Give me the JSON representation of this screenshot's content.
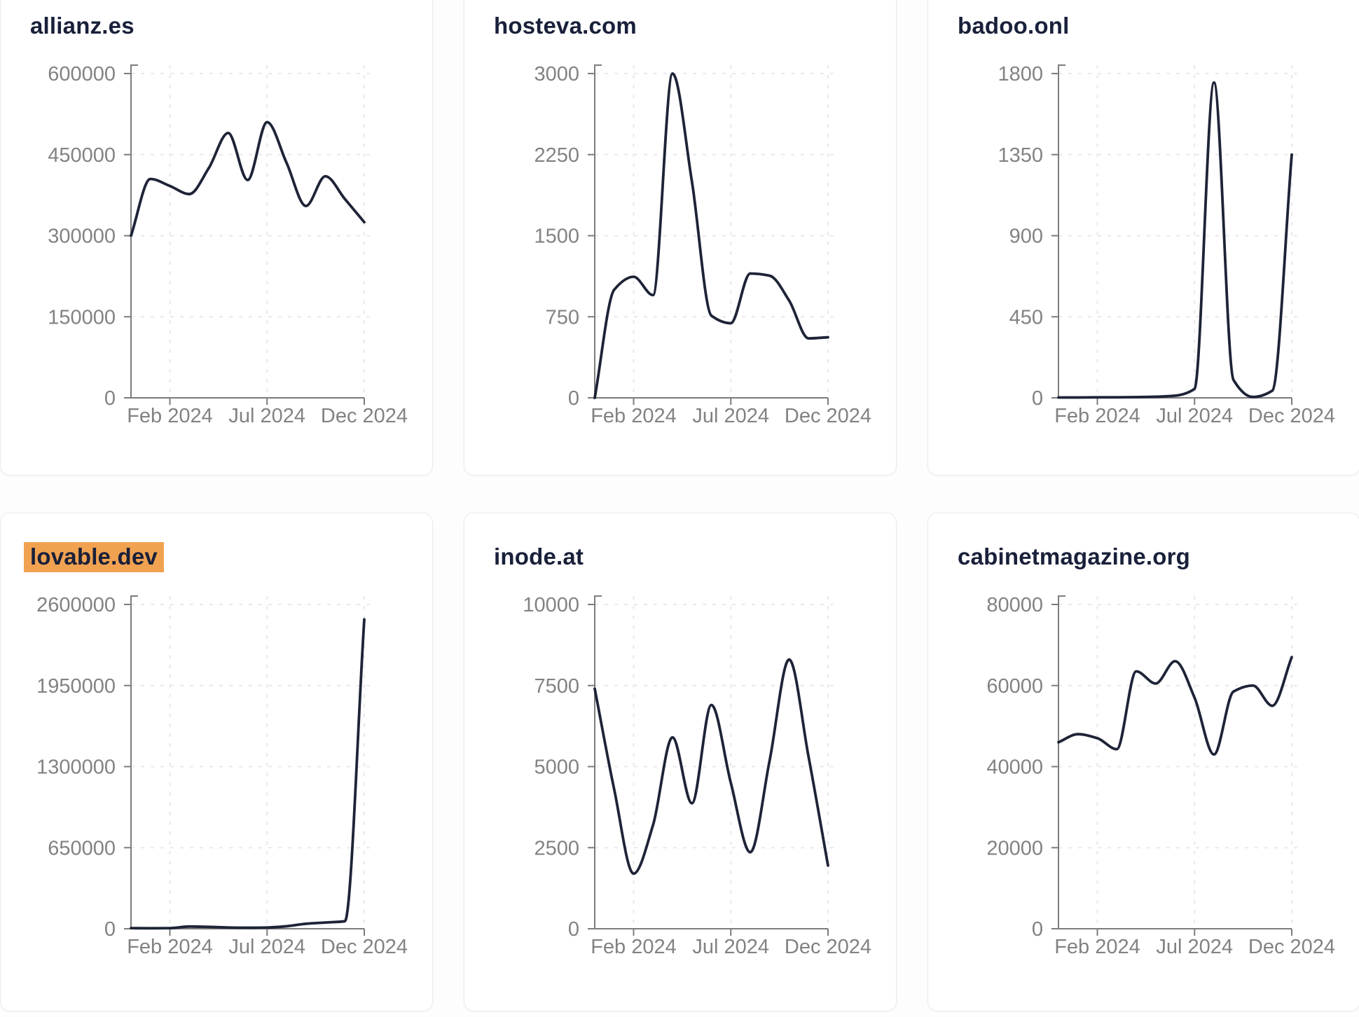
{
  "colors": {
    "line": "#1e2437",
    "title": "#19203a",
    "tick_label": "#828282",
    "axis": "#7c7c7c",
    "gridline": "#e8e8ed",
    "highlight": "#f1a251",
    "card_border": "#e9eaf2",
    "card_background": "#ffffff",
    "page_background": "#fdfdfe"
  },
  "x_axis": {
    "tick_labels": [
      "Feb 2024",
      "Jul 2024",
      "Dec 2024"
    ],
    "tick_month_indexes": [
      2,
      7,
      12
    ]
  },
  "chart_data": [
    {
      "type": "line",
      "title": "allianz.es",
      "highlighted": false,
      "x": [
        "Dec 2023",
        "Jan 2024",
        "Feb 2024",
        "Mar 2024",
        "Apr 2024",
        "May 2024",
        "Jun 2024",
        "Jul 2024",
        "Aug 2024",
        "Sep 2024",
        "Oct 2024",
        "Nov 2024",
        "Dec 2024"
      ],
      "x_tick_labels": [
        "Feb 2024",
        "Jul 2024",
        "Dec 2024"
      ],
      "ylim": [
        0,
        600000
      ],
      "y_ticks": [
        0,
        150000,
        300000,
        450000,
        600000
      ],
      "values": [
        300000,
        405000,
        392000,
        377000,
        425000,
        490000,
        403000,
        510000,
        435000,
        355000,
        410000,
        368000,
        325000
      ],
      "grid": true,
      "legend": "none"
    },
    {
      "type": "line",
      "title": "hosteva.com",
      "highlighted": false,
      "x": [
        "Dec 2023",
        "Jan 2024",
        "Feb 2024",
        "Mar 2024",
        "Apr 2024",
        "May 2024",
        "Jun 2024",
        "Jul 2024",
        "Aug 2024",
        "Sep 2024",
        "Oct 2024",
        "Nov 2024",
        "Dec 2024"
      ],
      "x_tick_labels": [
        "Feb 2024",
        "Jul 2024",
        "Dec 2024"
      ],
      "ylim": [
        0,
        3000
      ],
      "y_ticks": [
        0,
        750,
        1500,
        2250,
        3000
      ],
      "values": [
        0,
        1000,
        1120,
        950,
        3000,
        2000,
        760,
        690,
        1150,
        1130,
        900,
        550,
        560
      ],
      "grid": true,
      "legend": "none"
    },
    {
      "type": "line",
      "title": "badoo.onl",
      "highlighted": false,
      "x": [
        "Dec 2023",
        "Jan 2024",
        "Feb 2024",
        "Mar 2024",
        "Apr 2024",
        "May 2024",
        "Jun 2024",
        "Jul 2024",
        "Aug 2024",
        "Sep 2024",
        "Oct 2024",
        "Nov 2024",
        "Dec 2024"
      ],
      "x_tick_labels": [
        "Feb 2024",
        "Jul 2024",
        "Dec 2024"
      ],
      "ylim": [
        0,
        1800
      ],
      "y_ticks": [
        0,
        450,
        900,
        1350,
        1800
      ],
      "values": [
        2,
        2,
        3,
        3,
        4,
        6,
        12,
        50,
        1750,
        100,
        5,
        40,
        1350
      ],
      "grid": true,
      "legend": "none"
    },
    {
      "type": "line",
      "title": "lovable.dev",
      "highlighted": true,
      "x": [
        "Dec 2023",
        "Jan 2024",
        "Feb 2024",
        "Mar 2024",
        "Apr 2024",
        "May 2024",
        "Jun 2024",
        "Jul 2024",
        "Aug 2024",
        "Sep 2024",
        "Oct 2024",
        "Nov 2024",
        "Dec 2024"
      ],
      "x_tick_labels": [
        "Feb 2024",
        "Jul 2024",
        "Dec 2024"
      ],
      "ylim": [
        0,
        2600000
      ],
      "y_ticks": [
        0,
        650000,
        1300000,
        1950000,
        2600000
      ],
      "values": [
        5000,
        4000,
        5000,
        18000,
        15000,
        10000,
        8000,
        10000,
        20000,
        40000,
        50000,
        60000,
        2480000
      ],
      "grid": true,
      "legend": "none"
    },
    {
      "type": "line",
      "title": "inode.at",
      "highlighted": false,
      "x": [
        "Dec 2023",
        "Jan 2024",
        "Feb 2024",
        "Mar 2024",
        "Apr 2024",
        "May 2024",
        "Jun 2024",
        "Jul 2024",
        "Aug 2024",
        "Sep 2024",
        "Oct 2024",
        "Nov 2024",
        "Dec 2024"
      ],
      "x_tick_labels": [
        "Feb 2024",
        "Jul 2024",
        "Dec 2024"
      ],
      "ylim": [
        0,
        10000
      ],
      "y_ticks": [
        0,
        2500,
        5000,
        7500,
        10000
      ],
      "values": [
        7400,
        4300,
        1700,
        3200,
        5900,
        3870,
        6900,
        4500,
        2360,
        5200,
        8300,
        5300,
        1950
      ],
      "grid": true,
      "legend": "none"
    },
    {
      "type": "line",
      "title": "cabinetmagazine.org",
      "highlighted": false,
      "x": [
        "Dec 2023",
        "Jan 2024",
        "Feb 2024",
        "Mar 2024",
        "Apr 2024",
        "May 2024",
        "Jun 2024",
        "Jul 2024",
        "Aug 2024",
        "Sep 2024",
        "Oct 2024",
        "Nov 2024",
        "Dec 2024"
      ],
      "x_tick_labels": [
        "Feb 2024",
        "Jul 2024",
        "Dec 2024"
      ],
      "ylim": [
        0,
        80000
      ],
      "y_ticks": [
        0,
        20000,
        40000,
        60000,
        80000
      ],
      "values": [
        46000,
        48000,
        47000,
        44300,
        63500,
        60500,
        66000,
        57000,
        43000,
        58500,
        60000,
        55000,
        67000
      ],
      "grid": true,
      "legend": "none"
    }
  ]
}
